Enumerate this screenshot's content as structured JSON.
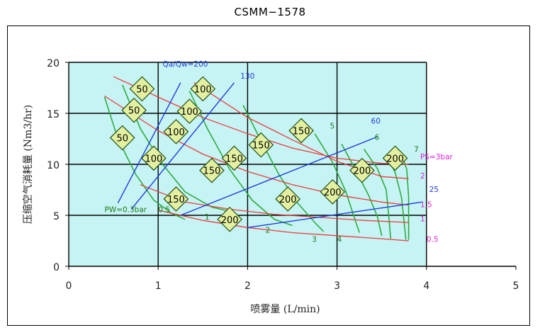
{
  "chart_data": {
    "type": "line",
    "title": "CSMM−1578",
    "xlabel": "喷雾量 (L/min)",
    "ylabel": "压缩空气消耗量 (Nm3/hr)",
    "xlim": [
      0,
      5
    ],
    "ylim": [
      0,
      20
    ],
    "x_ticks": [
      "0",
      "1",
      "2",
      "3",
      "4",
      "5"
    ],
    "y_ticks": [
      "0",
      "5",
      "10",
      "15",
      "20"
    ],
    "grid": true,
    "plot_background": "#c6f4f4",
    "colors": {
      "pa_curves": "#ee3a3a",
      "pw_curves": "#2eaa3e",
      "ratio_lines": "#1e3ce0",
      "pa_labels": "#e020d8",
      "pw_labels": "#1a7a1a",
      "diamond_fill": "#e4f0a0"
    },
    "series_pw": [
      {
        "label": "PW=0.3bar",
        "points": [
          [
            0.4,
            16.6
          ],
          [
            0.55,
            12.5
          ],
          [
            0.75,
            9.0
          ],
          [
            0.95,
            6.5
          ],
          [
            1.15,
            5.2
          ],
          [
            1.3,
            4.6
          ]
        ]
      },
      {
        "label": "0.5",
        "points": [
          [
            0.6,
            17.8
          ],
          [
            0.8,
            13.5
          ],
          [
            1.05,
            10.0
          ],
          [
            1.3,
            7.3
          ],
          [
            1.6,
            5.8
          ],
          [
            1.85,
            5.3
          ]
        ]
      },
      {
        "label": "1",
        "points": [
          [
            1.35,
            17.2
          ],
          [
            1.55,
            13.5
          ],
          [
            1.8,
            9.5
          ],
          [
            2.05,
            6.5
          ],
          [
            2.3,
            4.6
          ],
          [
            2.5,
            4.0
          ]
        ]
      },
      {
        "label": "2",
        "points": [
          [
            1.95,
            15.8
          ],
          [
            2.15,
            12.3
          ],
          [
            2.35,
            9.0
          ],
          [
            2.55,
            6.3
          ],
          [
            2.75,
            4.3
          ],
          [
            2.85,
            3.4
          ]
        ]
      },
      {
        "label": "3",
        "points": [
          [
            2.75,
            13.0
          ],
          [
            2.95,
            10.2
          ],
          [
            3.1,
            7.3
          ],
          [
            3.2,
            4.6
          ],
          [
            3.25,
            3.3
          ]
        ]
      },
      {
        "label": "4",
        "points": [
          [
            3.05,
            12.0
          ],
          [
            3.2,
            9.6
          ],
          [
            3.35,
            7.0
          ],
          [
            3.45,
            4.9
          ],
          [
            3.5,
            3.0
          ]
        ]
      },
      {
        "label": "5",
        "points": [
          [
            3.3,
            11.5
          ],
          [
            3.45,
            9.6
          ],
          [
            3.55,
            7.5
          ],
          [
            3.58,
            4.8
          ],
          [
            3.6,
            2.7
          ]
        ]
      },
      {
        "label": "6",
        "points": [
          [
            3.55,
            11.0
          ],
          [
            3.65,
            9.2
          ],
          [
            3.72,
            6.8
          ],
          [
            3.75,
            4.3
          ],
          [
            3.77,
            2.6
          ]
        ]
      },
      {
        "label": "7",
        "points": [
          [
            3.72,
            11.0
          ],
          [
            3.78,
            9.5
          ],
          [
            3.8,
            6.8
          ],
          [
            3.8,
            2.6
          ]
        ]
      }
    ],
    "series_pa": [
      {
        "label": "PS=3bar",
        "points": [
          [
            0.5,
            18.6
          ],
          [
            1.0,
            16.6
          ],
          [
            1.5,
            14.6
          ],
          [
            2.0,
            13.0
          ],
          [
            2.5,
            11.6
          ],
          [
            3.0,
            10.6
          ],
          [
            3.5,
            10.1
          ],
          [
            3.8,
            10.0
          ]
        ]
      },
      {
        "label": "2",
        "points": [
          [
            1.4,
            18.0
          ],
          [
            2.0,
            14.6
          ],
          [
            2.5,
            12.4
          ],
          [
            3.0,
            10.3
          ],
          [
            3.5,
            8.8
          ],
          [
            3.8,
            8.6
          ]
        ]
      },
      {
        "label": "1.5",
        "points": [
          [
            0.4,
            16.7
          ],
          [
            1.0,
            13.3
          ],
          [
            1.5,
            11.0
          ],
          [
            2.0,
            9.3
          ],
          [
            2.5,
            8.0
          ],
          [
            3.0,
            7.0
          ],
          [
            3.5,
            6.3
          ],
          [
            3.8,
            6.0
          ]
        ]
      },
      {
        "label": "1",
        "points": [
          [
            0.8,
            8.0
          ],
          [
            1.3,
            6.3
          ],
          [
            1.8,
            5.6
          ],
          [
            2.3,
            5.1
          ],
          [
            2.8,
            4.8
          ],
          [
            3.3,
            4.5
          ],
          [
            3.8,
            4.3
          ]
        ]
      },
      {
        "label": "0.5",
        "points": [
          [
            1.0,
            5.5
          ],
          [
            1.5,
            4.5
          ],
          [
            2.0,
            3.8
          ],
          [
            2.5,
            3.3
          ],
          [
            3.0,
            3.0
          ],
          [
            3.5,
            2.7
          ],
          [
            3.8,
            2.5
          ]
        ]
      }
    ],
    "series_ratio": [
      {
        "label": "Qa/Qw=200",
        "points": [
          [
            0.55,
            6.2
          ],
          [
            1.25,
            18.0
          ]
        ],
        "label_at": [
          1.05,
          19.6
        ]
      },
      {
        "label": "130",
        "points": [
          [
            0.7,
            5.6
          ],
          [
            1.85,
            18.0
          ]
        ],
        "label_at": [
          1.92,
          18.4
        ]
      },
      {
        "label": "60",
        "points": [
          [
            1.25,
            5.0
          ],
          [
            3.45,
            12.7
          ]
        ],
        "label_at": [
          3.38,
          14.0
        ]
      },
      {
        "label": "25",
        "points": [
          [
            2.0,
            3.8
          ],
          [
            3.95,
            6.3
          ]
        ],
        "label_at": [
          4.03,
          7.3
        ]
      }
    ],
    "labels_pw": [
      {
        "text": "PW=0.3bar",
        "at": [
          0.4,
          5.3
        ]
      },
      {
        "text": "0.5",
        "at": [
          1.0,
          5.3
        ]
      },
      {
        "text": "1",
        "at": [
          1.52,
          4.6
        ]
      },
      {
        "text": "2",
        "at": [
          2.2,
          3.3
        ]
      },
      {
        "text": "3",
        "at": [
          2.72,
          2.4
        ]
      },
      {
        "text": "4",
        "at": [
          3.0,
          2.4
        ]
      },
      {
        "text": "5",
        "at": [
          2.92,
          13.5
        ]
      },
      {
        "text": "6",
        "at": [
          3.42,
          12.4
        ]
      },
      {
        "text": "7",
        "at": [
          3.86,
          11.2
        ]
      }
    ],
    "labels_pa": [
      {
        "text": "PS=3bar",
        "at": [
          3.93,
          10.5
        ]
      },
      {
        "text": "2",
        "at": [
          3.93,
          8.6
        ]
      },
      {
        "text": "1.5",
        "at": [
          3.93,
          5.8
        ]
      },
      {
        "text": "1",
        "at": [
          3.93,
          4.4
        ]
      },
      {
        "text": "0.5",
        "at": [
          4.0,
          2.4
        ]
      }
    ],
    "markers": [
      {
        "text": "50",
        "at": [
          0.82,
          17.4
        ]
      },
      {
        "text": "50",
        "at": [
          0.73,
          15.3
        ]
      },
      {
        "text": "50",
        "at": [
          0.6,
          12.6
        ]
      },
      {
        "text": "100",
        "at": [
          1.5,
          17.4
        ]
      },
      {
        "text": "100",
        "at": [
          1.35,
          15.2
        ]
      },
      {
        "text": "100",
        "at": [
          1.2,
          13.2
        ]
      },
      {
        "text": "100",
        "at": [
          0.95,
          10.6
        ]
      },
      {
        "text": "150",
        "at": [
          2.6,
          13.3
        ]
      },
      {
        "text": "150",
        "at": [
          2.15,
          11.9
        ]
      },
      {
        "text": "150",
        "at": [
          1.85,
          10.6
        ]
      },
      {
        "text": "150",
        "at": [
          1.6,
          9.4
        ]
      },
      {
        "text": "150",
        "at": [
          1.2,
          6.6
        ]
      },
      {
        "text": "200",
        "at": [
          3.65,
          10.6
        ]
      },
      {
        "text": "200",
        "at": [
          3.28,
          9.4
        ]
      },
      {
        "text": "200",
        "at": [
          2.95,
          7.3
        ]
      },
      {
        "text": "200",
        "at": [
          2.45,
          6.6
        ]
      },
      {
        "text": "200",
        "at": [
          1.8,
          4.6
        ]
      }
    ]
  }
}
